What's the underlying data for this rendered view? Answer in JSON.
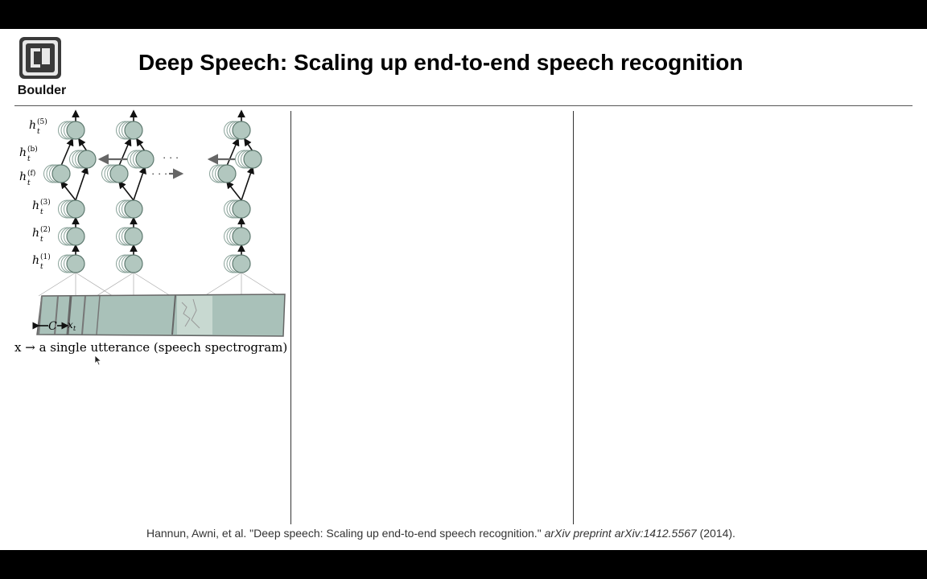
{
  "header": {
    "logo_text": "Boulder",
    "title": "Deep Speech: Scaling up end-to-end speech recognition"
  },
  "diagram": {
    "layer_labels": [
      "h",
      "h",
      "h",
      "h",
      "h",
      "h"
    ],
    "layer_superscripts": [
      "(5)",
      "(b)",
      "(f)",
      "(3)",
      "(2)",
      "(1)"
    ],
    "layer_subscript": "t",
    "ellipsis": "· · ·",
    "context_label": "C",
    "input_label": "x",
    "input_subscript": "t",
    "node_color": "#b2c7bf",
    "spectrogram_color": "#a9c1b9"
  },
  "caption": "x → a single utterance (speech spectrogram)",
  "citation": {
    "authors": "Hannun, Awni, et al. \"Deep speech: Scaling up end-to-end speech recognition.\" ",
    "venue": "arXiv preprint arXiv:1412.5567",
    "year": " (2014)."
  }
}
